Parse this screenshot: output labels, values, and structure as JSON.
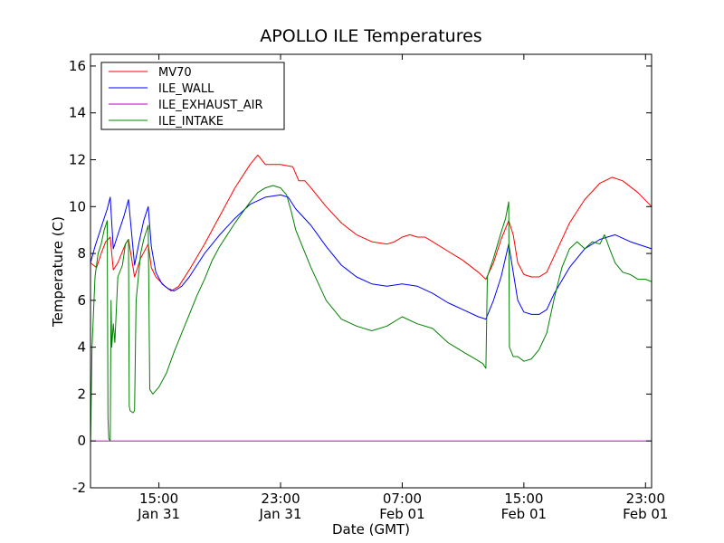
{
  "chart_data": {
    "type": "line",
    "title": "APOLLO ILE Temperatures",
    "xlabel": "Date (GMT)",
    "ylabel": "Temperature (C)",
    "xlim": [
      10.5,
      47.4
    ],
    "ylim": [
      -2,
      16.5
    ],
    "x_unit": "hours since 00:00 Jan 31 GMT",
    "y_ticks": [
      -2,
      0,
      2,
      4,
      6,
      8,
      10,
      12,
      14,
      16
    ],
    "x_ticks": [
      {
        "value": 15,
        "time": "15:00",
        "date": "Jan 31"
      },
      {
        "value": 23,
        "time": "23:00",
        "date": "Jan 31"
      },
      {
        "value": 31,
        "time": "07:00",
        "date": "Feb 01"
      },
      {
        "value": 39,
        "time": "15:00",
        "date": "Feb 01"
      },
      {
        "value": 47,
        "time": "23:00",
        "date": "Feb 01"
      }
    ],
    "legend_position": "top-left",
    "series": [
      {
        "name": "MV70",
        "color": "#ff0000",
        "points": [
          [
            10.5,
            7.6
          ],
          [
            10.9,
            7.4
          ],
          [
            11.2,
            8.0
          ],
          [
            11.5,
            8.5
          ],
          [
            11.8,
            8.7
          ],
          [
            12.0,
            7.3
          ],
          [
            12.3,
            7.6
          ],
          [
            12.8,
            8.4
          ],
          [
            13.0,
            8.6
          ],
          [
            13.4,
            7.0
          ],
          [
            13.8,
            7.8
          ],
          [
            14.3,
            8.4
          ],
          [
            14.5,
            7.4
          ],
          [
            14.8,
            7.0
          ],
          [
            15.4,
            6.6
          ],
          [
            15.8,
            6.4
          ],
          [
            16.3,
            6.6
          ],
          [
            17.0,
            7.3
          ],
          [
            18.0,
            8.4
          ],
          [
            19.0,
            9.6
          ],
          [
            20.0,
            10.8
          ],
          [
            21.0,
            11.8
          ],
          [
            21.5,
            12.2
          ],
          [
            22.0,
            11.8
          ],
          [
            22.5,
            11.8
          ],
          [
            23.0,
            11.8
          ],
          [
            23.8,
            11.7
          ],
          [
            24.2,
            11.1
          ],
          [
            24.6,
            11.1
          ],
          [
            25.0,
            10.8
          ],
          [
            26.0,
            10.0
          ],
          [
            27.0,
            9.3
          ],
          [
            28.0,
            8.8
          ],
          [
            29.0,
            8.5
          ],
          [
            30.0,
            8.4
          ],
          [
            30.5,
            8.5
          ],
          [
            31.0,
            8.7
          ],
          [
            31.5,
            8.8
          ],
          [
            32.0,
            8.7
          ],
          [
            32.5,
            8.7
          ],
          [
            33.0,
            8.5
          ],
          [
            34.0,
            8.1
          ],
          [
            35.0,
            7.7
          ],
          [
            36.0,
            7.2
          ],
          [
            36.5,
            6.9
          ],
          [
            37.0,
            7.6
          ],
          [
            37.5,
            8.6
          ],
          [
            38.0,
            9.4
          ],
          [
            38.3,
            8.8
          ],
          [
            38.6,
            7.6
          ],
          [
            39.0,
            7.1
          ],
          [
            39.5,
            7.0
          ],
          [
            40.0,
            7.0
          ],
          [
            40.5,
            7.2
          ],
          [
            41.0,
            7.9
          ],
          [
            42.0,
            9.3
          ],
          [
            43.0,
            10.3
          ],
          [
            44.0,
            11.0
          ],
          [
            44.8,
            11.25
          ],
          [
            45.5,
            11.1
          ],
          [
            46.5,
            10.6
          ],
          [
            47.4,
            10.0
          ]
        ]
      },
      {
        "name": "ILE_WALL",
        "color": "#0000ff",
        "points": [
          [
            10.5,
            7.6
          ],
          [
            10.8,
            8.3
          ],
          [
            11.3,
            9.3
          ],
          [
            11.6,
            9.9
          ],
          [
            11.8,
            10.4
          ],
          [
            12.0,
            8.2
          ],
          [
            12.3,
            8.8
          ],
          [
            12.7,
            9.6
          ],
          [
            13.0,
            10.3
          ],
          [
            13.4,
            7.5
          ],
          [
            13.7,
            8.5
          ],
          [
            14.0,
            9.4
          ],
          [
            14.3,
            10.0
          ],
          [
            14.5,
            8.3
          ],
          [
            14.8,
            7.2
          ],
          [
            15.2,
            6.7
          ],
          [
            15.6,
            6.5
          ],
          [
            16.0,
            6.4
          ],
          [
            16.5,
            6.6
          ],
          [
            17.0,
            7.0
          ],
          [
            18.0,
            8.0
          ],
          [
            19.0,
            8.8
          ],
          [
            20.0,
            9.5
          ],
          [
            21.0,
            10.1
          ],
          [
            22.0,
            10.4
          ],
          [
            23.0,
            10.5
          ],
          [
            23.5,
            10.4
          ],
          [
            24.0,
            9.9
          ],
          [
            25.0,
            9.2
          ],
          [
            26.0,
            8.3
          ],
          [
            27.0,
            7.5
          ],
          [
            28.0,
            7.0
          ],
          [
            29.0,
            6.7
          ],
          [
            30.0,
            6.6
          ],
          [
            31.0,
            6.7
          ],
          [
            32.0,
            6.6
          ],
          [
            33.0,
            6.3
          ],
          [
            34.0,
            5.9
          ],
          [
            35.0,
            5.6
          ],
          [
            36.0,
            5.3
          ],
          [
            36.5,
            5.2
          ],
          [
            37.0,
            6.0
          ],
          [
            37.5,
            7.0
          ],
          [
            38.0,
            8.4
          ],
          [
            38.3,
            7.2
          ],
          [
            38.6,
            6.0
          ],
          [
            39.0,
            5.5
          ],
          [
            39.5,
            5.4
          ],
          [
            40.0,
            5.4
          ],
          [
            40.5,
            5.6
          ],
          [
            41.0,
            6.3
          ],
          [
            42.0,
            7.4
          ],
          [
            43.0,
            8.2
          ],
          [
            44.0,
            8.6
          ],
          [
            45.0,
            8.8
          ],
          [
            46.0,
            8.5
          ],
          [
            47.4,
            8.2
          ]
        ]
      },
      {
        "name": "ILE_EXHAUST_AIR",
        "color": "#bf00bf",
        "points": [
          [
            10.5,
            0
          ],
          [
            47.4,
            0
          ]
        ]
      },
      {
        "name": "ILE_INTAKE",
        "color": "#008000",
        "points": [
          [
            10.5,
            -0.3
          ],
          [
            10.6,
            4.0
          ],
          [
            10.8,
            7.0
          ],
          [
            11.0,
            8.0
          ],
          [
            11.2,
            8.4
          ],
          [
            11.4,
            9.0
          ],
          [
            11.6,
            9.4
          ],
          [
            11.65,
            1.0
          ],
          [
            11.7,
            0.1
          ],
          [
            11.8,
            0.0
          ],
          [
            11.85,
            6.0
          ],
          [
            11.9,
            4.0
          ],
          [
            12.0,
            5.0
          ],
          [
            12.1,
            4.2
          ],
          [
            12.3,
            7.0
          ],
          [
            12.6,
            7.5
          ],
          [
            12.8,
            8.4
          ],
          [
            13.0,
            8.6
          ],
          [
            13.05,
            1.5
          ],
          [
            13.1,
            1.3
          ],
          [
            13.3,
            1.2
          ],
          [
            13.4,
            1.3
          ],
          [
            13.5,
            6.0
          ],
          [
            13.8,
            8.0
          ],
          [
            14.0,
            8.6
          ],
          [
            14.3,
            9.2
          ],
          [
            14.4,
            2.2
          ],
          [
            14.6,
            2.0
          ],
          [
            15.0,
            2.3
          ],
          [
            15.5,
            2.9
          ],
          [
            16.0,
            3.8
          ],
          [
            16.5,
            4.6
          ],
          [
            17.0,
            5.4
          ],
          [
            17.5,
            6.2
          ],
          [
            18.0,
            6.9
          ],
          [
            18.5,
            7.7
          ],
          [
            19.0,
            8.3
          ],
          [
            20.0,
            9.3
          ],
          [
            21.0,
            10.2
          ],
          [
            21.5,
            10.6
          ],
          [
            22.0,
            10.8
          ],
          [
            22.5,
            10.9
          ],
          [
            23.0,
            10.8
          ],
          [
            23.4,
            10.5
          ],
          [
            23.7,
            9.8
          ],
          [
            24.0,
            9.0
          ],
          [
            25.0,
            7.4
          ],
          [
            26.0,
            6.0
          ],
          [
            27.0,
            5.2
          ],
          [
            28.0,
            4.9
          ],
          [
            29.0,
            4.7
          ],
          [
            30.0,
            4.9
          ],
          [
            31.0,
            5.3
          ],
          [
            32.0,
            5.0
          ],
          [
            33.0,
            4.8
          ],
          [
            34.0,
            4.2
          ],
          [
            35.0,
            3.8
          ],
          [
            35.8,
            3.5
          ],
          [
            36.3,
            3.3
          ],
          [
            36.5,
            3.1
          ],
          [
            36.6,
            7.0
          ],
          [
            37.0,
            7.8
          ],
          [
            37.5,
            8.9
          ],
          [
            37.8,
            9.5
          ],
          [
            38.0,
            10.2
          ],
          [
            38.05,
            4.0
          ],
          [
            38.3,
            3.6
          ],
          [
            38.6,
            3.6
          ],
          [
            39.0,
            3.4
          ],
          [
            39.5,
            3.5
          ],
          [
            40.0,
            3.9
          ],
          [
            40.5,
            4.6
          ],
          [
            41.0,
            6.1
          ],
          [
            41.5,
            7.4
          ],
          [
            42.0,
            8.2
          ],
          [
            42.5,
            8.5
          ],
          [
            43.0,
            8.2
          ],
          [
            43.5,
            8.5
          ],
          [
            44.0,
            8.4
          ],
          [
            44.3,
            8.8
          ],
          [
            44.7,
            8.1
          ],
          [
            45.0,
            7.6
          ],
          [
            45.5,
            7.2
          ],
          [
            46.0,
            7.1
          ],
          [
            46.5,
            6.9
          ],
          [
            47.0,
            6.9
          ],
          [
            47.4,
            6.8
          ]
        ]
      }
    ]
  }
}
